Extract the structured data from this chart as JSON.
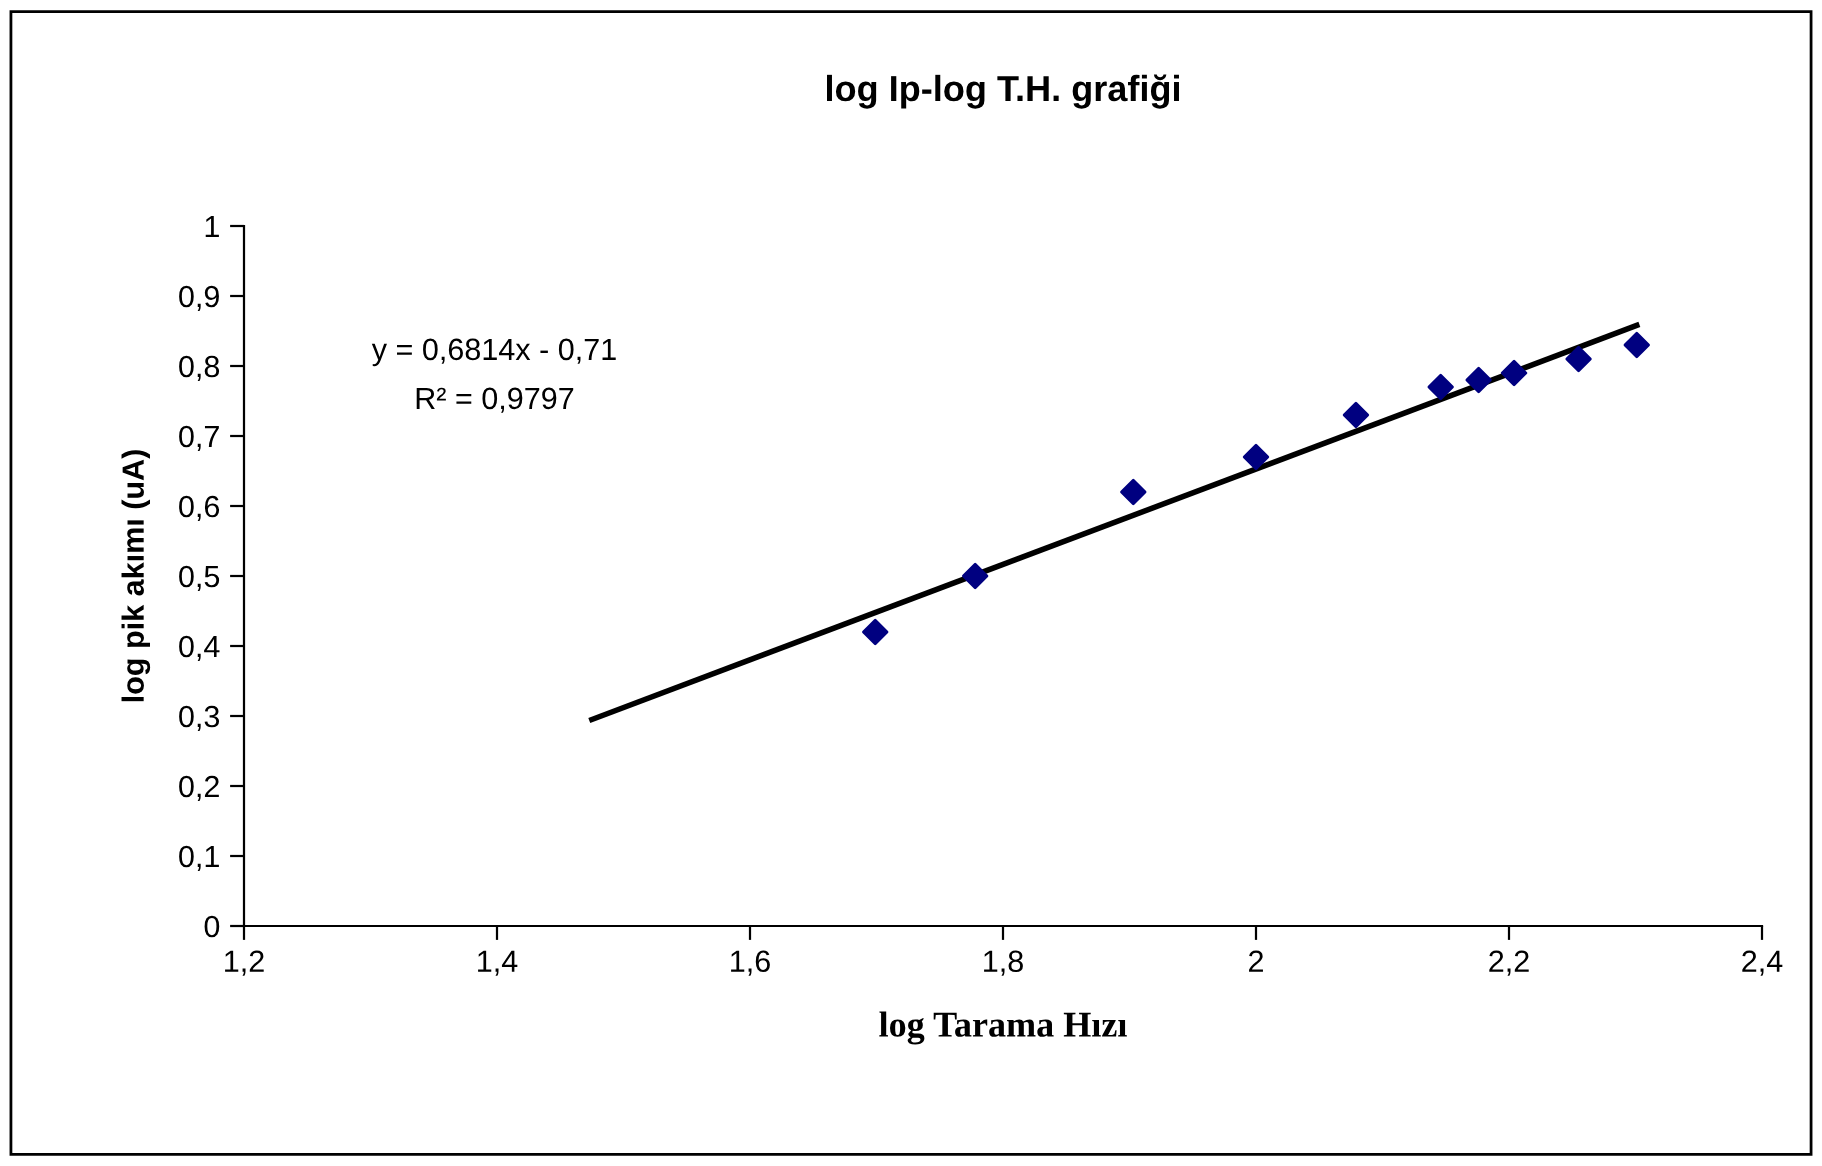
{
  "chart_data": {
    "type": "scatter",
    "title": "log Ip-log T.H. grafiği",
    "xlabel": "log Tarama Hızı",
    "ylabel": "log pik akımı (uA)",
    "series": [
      {
        "color": "#000080",
        "marker": "diamond",
        "x": [
          1.699,
          1.778,
          1.903,
          2.0,
          2.079,
          2.146,
          2.176,
          2.204,
          2.255,
          2.301
        ],
        "values": [
          0.42,
          0.5,
          0.62,
          0.67,
          0.73,
          0.77,
          0.78,
          0.79,
          0.81,
          0.83
        ]
      },
      {
        "type": "line",
        "color": "#000000",
        "marker": "none",
        "x": [
          1.475,
          2.301
        ],
        "values": [
          0.295,
          0.858
        ]
      }
    ],
    "annotations": [
      "y = 0,6814x - 0,71",
      "R² = 0,9797"
    ],
    "xlim": [
      1.2,
      2.4
    ],
    "ylim": [
      0,
      1
    ],
    "xticks": [
      {
        "value": 1.2,
        "label": "1,2"
      },
      {
        "value": 1.4,
        "label": "1,4"
      },
      {
        "value": 1.6,
        "label": "1,6"
      },
      {
        "value": 1.8,
        "label": "1,8"
      },
      {
        "value": 2,
        "label": "2"
      },
      {
        "value": 2.2,
        "label": "2,2"
      },
      {
        "value": 2.4,
        "label": "2,4"
      }
    ],
    "yticks": [
      0,
      {
        "value": 0.1,
        "label": "0,1"
      },
      {
        "value": 0.2,
        "label": "0,2"
      },
      {
        "value": 0.3,
        "label": "0,3"
      },
      {
        "value": 0.4,
        "label": "0,4"
      },
      {
        "value": 0.5,
        "label": "0,5"
      },
      {
        "value": 0.6,
        "label": "0,6"
      },
      {
        "value": 0.7,
        "label": "0,7"
      },
      {
        "value": 0.8,
        "label": "0,8"
      },
      {
        "value": 0.9,
        "label": "0,9"
      },
      1
    ],
    "grid": false
  }
}
